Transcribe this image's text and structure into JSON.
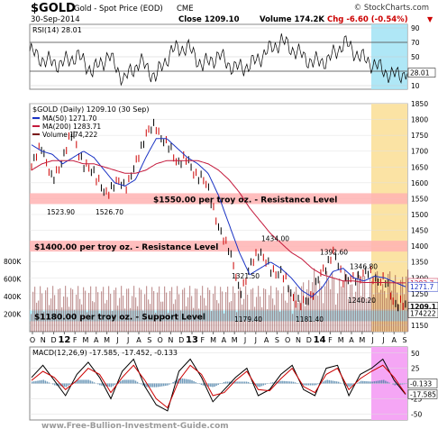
{
  "header": {
    "symbol": "$GOLD",
    "name": "Gold - Spot Price (EOD)",
    "exchange": "CME",
    "date": "30-Sep-2014",
    "close": "Close 1209.10",
    "volume": "Volume 174.2K",
    "change": "Chg -6.60 (-0.54%)",
    "change_arrow": "▼",
    "brand": "© StockCharts.com"
  },
  "watermark": "www.Free-Bullion-Investment-Guide.com",
  "colors": {
    "price": "#000000",
    "up_bar": "#000000",
    "down_bar": "#cc0000",
    "ma50": "#1a33c4",
    "ma200": "#c41a3c",
    "resistance_band": "#ffb3b3",
    "support_band": "#a8e8f5",
    "highlight_yellow": "#fbe3a4",
    "highlight_cyan": "#a6e4f5",
    "highlight_magenta": "#f5a6f5",
    "volume": "#7a1a1a"
  },
  "chart_data": [
    {
      "type": "line",
      "panel": "RSI",
      "title": "RSI(14) 28.01",
      "yticks": [
        10,
        30,
        50,
        70,
        90
      ],
      "ylim": [
        5,
        95
      ],
      "reference_lines": [
        30,
        70
      ],
      "last_value": "28.01",
      "series": [
        {
          "x": [
            "2012-10",
            "2012-11",
            "2012-12",
            "2013-01",
            "2013-02",
            "2013-03",
            "2013-04",
            "2013-05",
            "2013-06",
            "2013-07",
            "2013-08",
            "2013-09",
            "2013-10",
            "2013-11",
            "2013-12",
            "2014-01",
            "2014-02",
            "2014-03",
            "2014-04",
            "2014-05",
            "2014-06",
            "2014-07",
            "2014-08",
            "2014-09",
            "2014-09-30"
          ],
          "values": [
            58,
            44,
            40,
            52,
            30,
            52,
            18,
            44,
            22,
            58,
            64,
            38,
            52,
            34,
            38,
            56,
            72,
            56,
            42,
            46,
            70,
            50,
            38,
            24,
            28
          ]
        }
      ]
    },
    {
      "type": "line",
      "panel": "Price",
      "title": "$GOLD (Daily) 1209.10 (30 Sep)",
      "legend": [
        {
          "label": "MA(50) 1271.70",
          "color": "#1a33c4"
        },
        {
          "label": "MA(200) 1283.71",
          "color": "#c41a3c"
        },
        {
          "label": "Volume 174,222",
          "color": "#7a1a1a"
        }
      ],
      "ylim": [
        1130,
        1850
      ],
      "yticks": [
        1150,
        1200,
        1250,
        1300,
        1350,
        1400,
        1450,
        1500,
        1550,
        1600,
        1650,
        1700,
        1750,
        1800,
        1850
      ],
      "volume_ticks": [
        "200K",
        "400K",
        "600K",
        "800K"
      ],
      "volume_values": [
        200000,
        400000,
        600000,
        800000
      ],
      "x_ticks": [
        "O",
        "N",
        "D",
        "12",
        "F",
        "M",
        "A",
        "M",
        "J",
        "J",
        "A",
        "S",
        "O",
        "N",
        "D",
        "13",
        "F",
        "M",
        "A",
        "M",
        "J",
        "J",
        "A",
        "S",
        "O",
        "N",
        "D",
        "14",
        "F",
        "M",
        "A",
        "M",
        "J",
        "J",
        "A",
        "S"
      ],
      "series": [
        {
          "name": "Price",
          "x": [
            "2011-10",
            "2011-11",
            "2011-12",
            "2012-01",
            "2012-02",
            "2012-03",
            "2012-04",
            "2012-05",
            "2012-06",
            "2012-07",
            "2012-08",
            "2012-09",
            "2012-10",
            "2012-11",
            "2012-12",
            "2013-01",
            "2013-02",
            "2013-03",
            "2013-04",
            "2013-05",
            "2013-06",
            "2013-07",
            "2013-08",
            "2013-09",
            "2013-10",
            "2013-11",
            "2013-12",
            "2014-01",
            "2014-02",
            "2014-03",
            "2014-04",
            "2014-05",
            "2014-06",
            "2014-07",
            "2014-08",
            "2014-09",
            "2014-09-30"
          ],
          "values": [
            1650,
            1720,
            1600,
            1680,
            1760,
            1650,
            1640,
            1560,
            1600,
            1590,
            1650,
            1760,
            1775,
            1720,
            1670,
            1670,
            1620,
            1590,
            1450,
            1400,
            1250,
            1330,
            1390,
            1320,
            1320,
            1250,
            1210,
            1250,
            1320,
            1380,
            1300,
            1290,
            1320,
            1300,
            1290,
            1220,
            1209
          ]
        },
        {
          "name": "MA(50)",
          "values": [
            1720,
            1700,
            1690,
            1660,
            1680,
            1700,
            1680,
            1640,
            1600,
            1590,
            1610,
            1680,
            1740,
            1740,
            1710,
            1680,
            1660,
            1630,
            1560,
            1470,
            1380,
            1310,
            1330,
            1350,
            1330,
            1300,
            1260,
            1240,
            1270,
            1320,
            1330,
            1300,
            1290,
            1305,
            1300,
            1285,
            1272
          ]
        },
        {
          "name": "MA(200)",
          "values": [
            1640,
            1660,
            1670,
            1670,
            1670,
            1660,
            1660,
            1650,
            1640,
            1630,
            1630,
            1640,
            1660,
            1670,
            1670,
            1670,
            1670,
            1660,
            1640,
            1610,
            1570,
            1520,
            1480,
            1440,
            1410,
            1380,
            1360,
            1330,
            1310,
            1300,
            1290,
            1290,
            1285,
            1285,
            1285,
            1284,
            1284
          ]
        }
      ],
      "annotations": [
        {
          "label": "1523.90",
          "value": 1523.9
        },
        {
          "label": "1526.70",
          "value": 1526.7
        },
        {
          "label": "1434.00",
          "value": 1434.0
        },
        {
          "label": "1392.60",
          "value": 1392.6
        },
        {
          "label": "1346.80",
          "value": 1346.8
        },
        {
          "label": "1321.50",
          "value": 1321.5
        },
        {
          "label": "1240.20",
          "value": 1240.2
        },
        {
          "label": "1179.40",
          "value": 1179.4
        },
        {
          "label": "1181.40",
          "value": 1181.4
        }
      ],
      "bands": [
        {
          "label": "$1550.00 per troy oz. - Resistance Level",
          "value": 1550
        },
        {
          "label": "$1400.00 per troy oz. - Resistance Level",
          "value": 1400
        },
        {
          "label": "$1180.00 per troy oz. - Support Level",
          "value": 1180
        }
      ],
      "last_values": [
        "1283.7",
        "1271.7",
        "1209.1",
        "174222"
      ]
    },
    {
      "type": "line",
      "panel": "MACD",
      "title": "MACD(12,26,9) -17.585, -17.452, -0.133",
      "ylim": [
        -60,
        60
      ],
      "yticks": [
        -50,
        -25,
        0,
        25,
        50
      ],
      "last_values": [
        "-0.133",
        "-17.585"
      ],
      "series": [
        {
          "name": "MACD",
          "values": [
            10,
            30,
            5,
            -20,
            15,
            35,
            10,
            -25,
            20,
            40,
            -5,
            -35,
            -45,
            20,
            40,
            10,
            -30,
            -10,
            10,
            25,
            -20,
            -10,
            15,
            30,
            -10,
            -20,
            25,
            30,
            -20,
            15,
            25,
            40,
            5,
            -18
          ]
        },
        {
          "name": "Signal",
          "values": [
            5,
            20,
            10,
            -10,
            5,
            25,
            15,
            -15,
            10,
            30,
            5,
            -25,
            -40,
            5,
            30,
            15,
            -20,
            -15,
            5,
            20,
            -10,
            -12,
            8,
            25,
            -5,
            -15,
            15,
            25,
            -10,
            8,
            20,
            30,
            10,
            -17
          ]
        }
      ]
    }
  ]
}
